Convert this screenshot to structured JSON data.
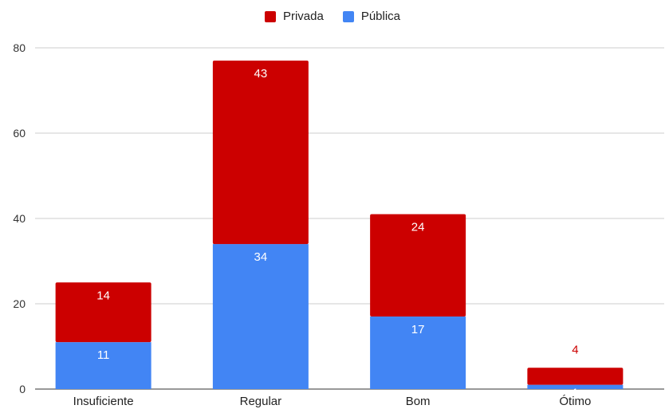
{
  "chart_data": {
    "type": "bar",
    "stacked": true,
    "title": "",
    "xlabel": "",
    "ylabel": "",
    "categories": [
      "Insuficiente",
      "Regular",
      "Bom",
      "Ótimo"
    ],
    "series": [
      {
        "name": "Pública",
        "values": [
          11,
          34,
          17,
          1
        ],
        "color": "#4285f4",
        "label_color": "#ffffff"
      },
      {
        "name": "Privada",
        "values": [
          14,
          43,
          24,
          4
        ],
        "color": "#cc0000",
        "label_color": "#ffffff"
      }
    ],
    "ylim": [
      0,
      80
    ],
    "yticks": [
      0,
      20,
      40,
      60,
      80
    ],
    "grid": true,
    "legend": "top-center"
  }
}
